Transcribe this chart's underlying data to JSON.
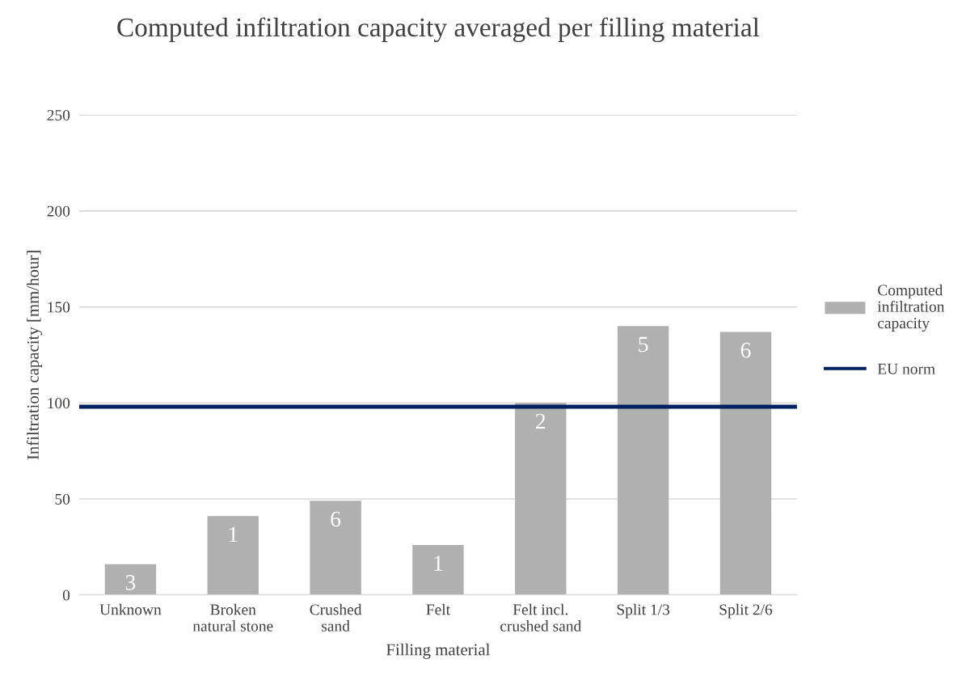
{
  "chart_data": {
    "type": "bar",
    "title": "Computed infiltration capacity averaged per filling material",
    "xlabel": "Filling material",
    "ylabel": "Infiltration capacity [mm/hour]",
    "categories": [
      "Unknown",
      "Broken natural stone",
      "Crushed sand",
      "Felt",
      "Felt incl. crushed sand",
      "Split 1/3",
      "Split 2/6"
    ],
    "series": [
      {
        "name": "Computed infiltration capacity",
        "color": "#b0b0b0",
        "values": [
          16,
          41,
          49,
          26,
          100,
          140,
          137
        ]
      }
    ],
    "annotations": [
      {
        "text": "3",
        "x": "Unknown",
        "y": 16
      },
      {
        "text": "1",
        "x": "Broken natural stone",
        "y": 41
      },
      {
        "text": "6",
        "x": "Crushed sand",
        "y": 49
      },
      {
        "text": "1",
        "x": "Felt",
        "y": 26
      },
      {
        "text": "2",
        "x": "Felt incl. crushed sand",
        "y": 100
      },
      {
        "text": "5",
        "x": "Split 1/3",
        "y": 140
      },
      {
        "text": "6",
        "x": "Split 2/6",
        "y": 137
      }
    ],
    "ref_lines": [
      {
        "axis": "y",
        "value": 98,
        "label": "EU norm",
        "color": "#002060"
      }
    ],
    "ylim": [
      0,
      250
    ],
    "yticks": [
      0,
      50,
      100,
      150,
      200,
      250
    ],
    "grid": "y",
    "legend": "right"
  }
}
